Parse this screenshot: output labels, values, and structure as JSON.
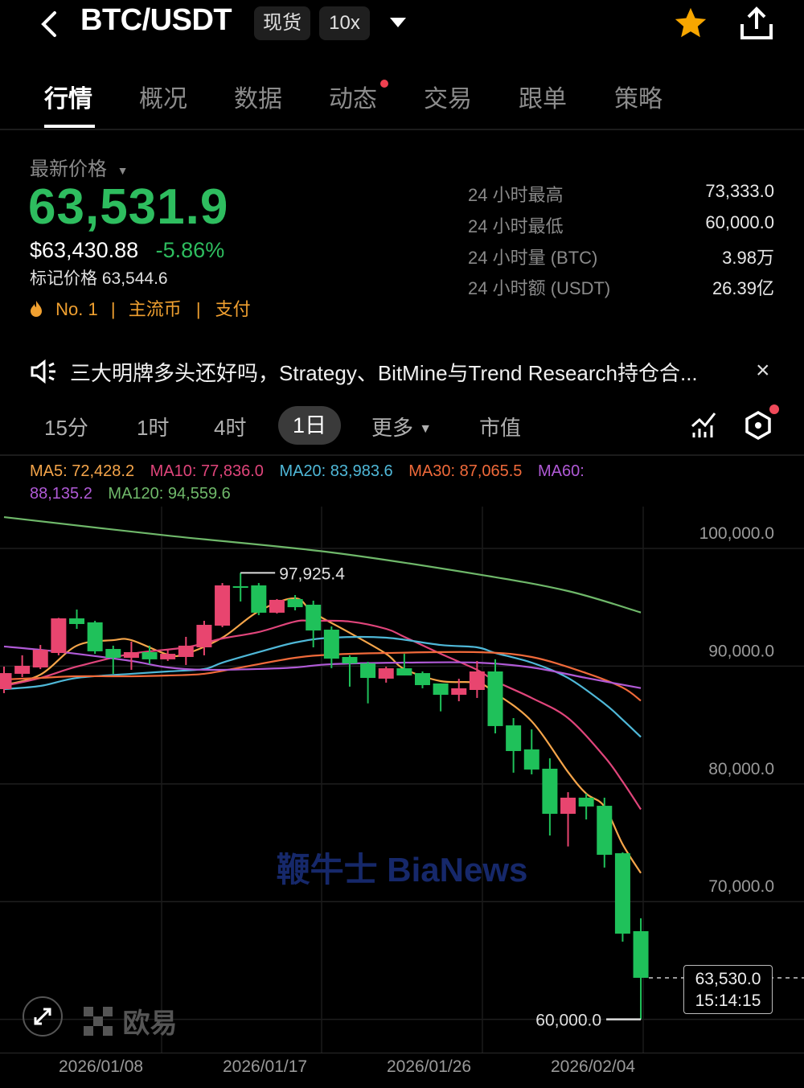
{
  "header": {
    "title": "BTC/USDT",
    "badge_spot": "现货",
    "badge_leverage": "10x",
    "icons": {
      "back": "chevron-left-icon",
      "dropdown": "triangle-down-icon",
      "favorite": "star-icon",
      "share": "share-icon"
    },
    "favorite_color": "#f7a600"
  },
  "tabs": [
    {
      "label": "行情",
      "active": true
    },
    {
      "label": "概况"
    },
    {
      "label": "数据"
    },
    {
      "label": "动态",
      "dot": true
    },
    {
      "label": "交易"
    },
    {
      "label": "跟单"
    },
    {
      "label": "策略"
    }
  ],
  "price": {
    "label": "最新价格",
    "last": "63,531.9",
    "usd": "$63,430.88",
    "change": "-5.86%",
    "mark_label": "标记价格",
    "mark_value": "63,544.6",
    "rank": "No. 1",
    "tag1": "主流币",
    "tag2": "支付",
    "color_down": "#2ebd5f",
    "tag_color": "#f0a030"
  },
  "stats": [
    {
      "label": "24 小时最高",
      "value": "73,333.0"
    },
    {
      "label": "24 小时最低",
      "value": "60,000.0"
    },
    {
      "label": "24 小时量 (BTC)",
      "value": "3.98万"
    },
    {
      "label": "24 小时额 (USDT)",
      "value": "26.39亿"
    }
  ],
  "announcement": {
    "text": "三大明牌多头还好吗，Strategy、BitMine与Trend Research持仓合...",
    "close": "×"
  },
  "timeframes": {
    "items": [
      "15分",
      "1时",
      "4时",
      "1日",
      "更多",
      "市值"
    ],
    "active": "1日"
  },
  "ma_legend": {
    "ma5": "MA5: 72,428.2",
    "ma10": "MA10: 77,836.0",
    "ma20": "MA20: 83,983.6",
    "ma30": "MA30: 87,065.5",
    "ma60_a": "MA60:",
    "ma60_b": "88,135.2",
    "ma120": "MA120: 94,559.6"
  },
  "watermark": "鞭牛士 BiaNews",
  "logo": "欧易",
  "chart_data": {
    "type": "candlestick",
    "ylim": [
      57000,
      103500
    ],
    "y_ticks": [
      "100,000.0",
      "90,000.0",
      "80,000.0",
      "70,000.0"
    ],
    "y_tick_values": [
      100000,
      90000,
      80000,
      70000
    ],
    "x_ticks": [
      "2026/01/08",
      "2026/01/17",
      "2026/01/26",
      "2026/02/04"
    ],
    "grid": true,
    "up_color": "#e8456f",
    "down_color": "#1fc15a",
    "high_marker": "97,925.4",
    "low_marker": "60,000.0",
    "current_price": "63,530.0",
    "countdown": "15:14:15",
    "candles": [
      {
        "date": "2026/01/02",
        "o": 88050,
        "h": 89960,
        "l": 87710,
        "c": 89410
      },
      {
        "date": "2026/01/03",
        "o": 89350,
        "h": 90920,
        "l": 89070,
        "c": 90030
      },
      {
        "date": "2026/01/04",
        "o": 89890,
        "h": 91800,
        "l": 89750,
        "c": 91390
      },
      {
        "date": "2026/01/05",
        "o": 91120,
        "h": 94100,
        "l": 90920,
        "c": 94060
      },
      {
        "date": "2026/01/06",
        "o": 94060,
        "h": 94810,
        "l": 93170,
        "c": 93580
      },
      {
        "date": "2026/01/07",
        "o": 93720,
        "h": 93850,
        "l": 91050,
        "c": 91260
      },
      {
        "date": "2026/01/08",
        "o": 91460,
        "h": 91740,
        "l": 89340,
        "c": 90710
      },
      {
        "date": "2026/01/09",
        "o": 90710,
        "h": 92080,
        "l": 89690,
        "c": 91190
      },
      {
        "date": "2026/01/10",
        "o": 91190,
        "h": 91740,
        "l": 90170,
        "c": 90580
      },
      {
        "date": "2026/01/11",
        "o": 90580,
        "h": 91390,
        "l": 90440,
        "c": 91050
      },
      {
        "date": "2026/01/12",
        "o": 90780,
        "h": 92490,
        "l": 90100,
        "c": 91740
      },
      {
        "date": "2026/01/13",
        "o": 91600,
        "h": 93850,
        "l": 90920,
        "c": 93510
      },
      {
        "date": "2026/01/14",
        "o": 93440,
        "h": 97060,
        "l": 93310,
        "c": 96860
      },
      {
        "date": "2026/01/15",
        "o": 96790,
        "h": 97925,
        "l": 95490,
        "c": 96650
      },
      {
        "date": "2026/01/16",
        "o": 96860,
        "h": 97060,
        "l": 94330,
        "c": 94540
      },
      {
        "date": "2026/01/17",
        "o": 94540,
        "h": 95700,
        "l": 94470,
        "c": 95630
      },
      {
        "date": "2026/01/18",
        "o": 95700,
        "h": 96040,
        "l": 94740,
        "c": 95010
      },
      {
        "date": "2026/01/19",
        "o": 95220,
        "h": 95560,
        "l": 91600,
        "c": 93030
      },
      {
        "date": "2026/01/20",
        "o": 93100,
        "h": 93370,
        "l": 89830,
        "c": 90640
      },
      {
        "date": "2026/01/21",
        "o": 90780,
        "h": 90920,
        "l": 88260,
        "c": 90230
      },
      {
        "date": "2026/01/22",
        "o": 90230,
        "h": 90370,
        "l": 86840,
        "c": 89000
      },
      {
        "date": "2026/01/23",
        "o": 88940,
        "h": 89960,
        "l": 88600,
        "c": 89820
      },
      {
        "date": "2026/01/24",
        "o": 89820,
        "h": 91050,
        "l": 89210,
        "c": 89210
      },
      {
        "date": "2026/01/25",
        "o": 89410,
        "h": 89550,
        "l": 88120,
        "c": 88390
      },
      {
        "date": "2026/01/26",
        "o": 88530,
        "h": 88530,
        "l": 86160,
        "c": 87570
      },
      {
        "date": "2026/01/27",
        "o": 87570,
        "h": 88930,
        "l": 87020,
        "c": 88120
      },
      {
        "date": "2026/01/28",
        "o": 87980,
        "h": 90440,
        "l": 87300,
        "c": 89550
      },
      {
        "date": "2026/01/29",
        "o": 89550,
        "h": 90580,
        "l": 84290,
        "c": 84910
      },
      {
        "date": "2026/01/30",
        "o": 84970,
        "h": 85590,
        "l": 80950,
        "c": 82790
      },
      {
        "date": "2026/01/31",
        "o": 82930,
        "h": 84630,
        "l": 80810,
        "c": 81220
      },
      {
        "date": "2026/02/01",
        "o": 81290,
        "h": 82170,
        "l": 75620,
        "c": 77460
      },
      {
        "date": "2026/02/02",
        "o": 77460,
        "h": 79300,
        "l": 74690,
        "c": 78830
      },
      {
        "date": "2026/02/03",
        "o": 78830,
        "h": 79170,
        "l": 76980,
        "c": 78080
      },
      {
        "date": "2026/02/04",
        "o": 78140,
        "h": 78830,
        "l": 72890,
        "c": 73980
      },
      {
        "date": "2026/02/05",
        "o": 74110,
        "h": 74180,
        "l": 66600,
        "c": 67280
      },
      {
        "date": "2026/02/06",
        "o": 67490,
        "h": 68580,
        "l": 60000,
        "c": 63530
      }
    ],
    "series": [
      {
        "name": "MA5",
        "color": "#f5a54a",
        "points": [
          [
            "2026/01/02",
            88390
          ],
          [
            "2026/01/04",
            89280
          ],
          [
            "2026/01/06",
            91740
          ],
          [
            "2026/01/08",
            92210
          ],
          [
            "2026/01/09",
            92210
          ],
          [
            "2026/01/11",
            90980
          ],
          [
            "2026/01/12",
            91050
          ],
          [
            "2026/01/14",
            92420
          ],
          [
            "2026/01/16",
            94670
          ],
          [
            "2026/01/18",
            95770
          ],
          [
            "2026/01/19",
            94540
          ],
          [
            "2026/01/21",
            92830
          ],
          [
            "2026/01/23",
            91050
          ],
          [
            "2026/01/24",
            89760
          ],
          [
            "2026/01/26",
            88730
          ],
          [
            "2026/01/28",
            88590
          ],
          [
            "2026/01/29",
            87710
          ],
          [
            "2026/01/31",
            85320
          ],
          [
            "2026/02/02",
            81010
          ],
          [
            "2026/02/03",
            79170
          ],
          [
            "2026/02/04",
            78080
          ],
          [
            "2026/02/05",
            74870
          ],
          [
            "2026/02/06",
            72428.2
          ]
        ]
      },
      {
        "name": "MA10",
        "color": "#e0457b",
        "points": [
          [
            "2026/01/02",
            88320
          ],
          [
            "2026/01/04",
            89000
          ],
          [
            "2026/01/06",
            89960
          ],
          [
            "2026/01/09",
            91050
          ],
          [
            "2026/01/12",
            91600
          ],
          [
            "2026/01/14",
            92350
          ],
          [
            "2026/01/16",
            92900
          ],
          [
            "2026/01/18",
            93790
          ],
          [
            "2026/01/19",
            93850
          ],
          [
            "2026/01/21",
            93790
          ],
          [
            "2026/01/23",
            93170
          ],
          [
            "2026/01/24",
            92490
          ],
          [
            "2026/01/26",
            91050
          ],
          [
            "2026/01/28",
            89690
          ],
          [
            "2026/01/29",
            88730
          ],
          [
            "2026/01/31",
            87300
          ],
          [
            "2026/02/02",
            85590
          ],
          [
            "2026/02/04",
            82310
          ],
          [
            "2026/02/05",
            80190
          ],
          [
            "2026/02/06",
            77836.0
          ]
        ]
      },
      {
        "name": "MA20",
        "color": "#4fb8d8",
        "points": [
          [
            "2026/01/02",
            88050
          ],
          [
            "2026/01/04",
            88320
          ],
          [
            "2026/01/06",
            89000
          ],
          [
            "2026/01/09",
            89350
          ],
          [
            "2026/01/11",
            89550
          ],
          [
            "2026/01/13",
            89760
          ],
          [
            "2026/01/14",
            90300
          ],
          [
            "2026/01/16",
            91190
          ],
          [
            "2026/01/18",
            92010
          ],
          [
            "2026/01/20",
            92420
          ],
          [
            "2026/01/23",
            92420
          ],
          [
            "2026/01/26",
            91800
          ],
          [
            "2026/01/28",
            91600
          ],
          [
            "2026/01/29",
            91120
          ],
          [
            "2026/01/31",
            90300
          ],
          [
            "2026/02/02",
            89000
          ],
          [
            "2026/02/04",
            86820
          ],
          [
            "2026/02/05",
            85450
          ],
          [
            "2026/02/06",
            83983.6
          ]
        ]
      },
      {
        "name": "MA30",
        "color": "#f06a3a",
        "points": [
          [
            "2026/01/02",
            88870
          ],
          [
            "2026/01/04",
            89000
          ],
          [
            "2026/01/06",
            89140
          ],
          [
            "2026/01/09",
            89140
          ],
          [
            "2026/01/11",
            89210
          ],
          [
            "2026/01/13",
            89350
          ],
          [
            "2026/01/15",
            89890
          ],
          [
            "2026/01/18",
            90710
          ],
          [
            "2026/01/20",
            90980
          ],
          [
            "2026/01/23",
            91120
          ],
          [
            "2026/01/28",
            91190
          ],
          [
            "2026/01/31",
            90780
          ],
          [
            "2026/02/03",
            89410
          ],
          [
            "2026/02/05",
            88180
          ],
          [
            "2026/02/06",
            87065.5
          ]
        ]
      },
      {
        "name": "MA60",
        "color": "#b05ad6",
        "points": [
          [
            "2026/01/02",
            91670
          ],
          [
            "2026/01/04",
            91390
          ],
          [
            "2026/01/06",
            91050
          ],
          [
            "2026/01/09",
            90440
          ],
          [
            "2026/01/11",
            89890
          ],
          [
            "2026/01/13",
            89690
          ],
          [
            "2026/01/16",
            89760
          ],
          [
            "2026/01/18",
            89890
          ],
          [
            "2026/01/20",
            90170
          ],
          [
            "2026/01/24",
            90300
          ],
          [
            "2026/01/28",
            90300
          ],
          [
            "2026/01/31",
            89890
          ],
          [
            "2026/02/03",
            89000
          ],
          [
            "2026/02/06",
            88135.2
          ]
        ]
      },
      {
        "name": "MA120",
        "color": "#6fb86a",
        "points": [
          [
            "2026/01/02",
            102660
          ],
          [
            "2026/01/11",
            101090
          ],
          [
            "2026/01/20",
            99660
          ],
          [
            "2026/01/28",
            97810
          ],
          [
            "2026/02/02",
            96380
          ],
          [
            "2026/02/06",
            94559.6
          ]
        ]
      }
    ]
  }
}
